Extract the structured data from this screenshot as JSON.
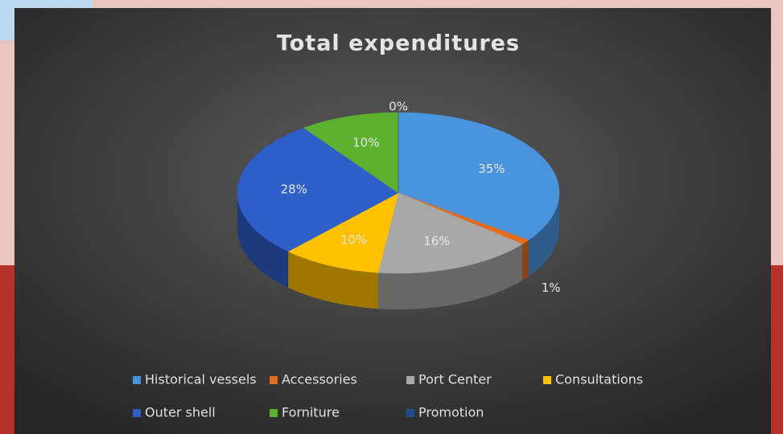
{
  "chart_data": {
    "type": "pie3d",
    "title": "Total expenditures",
    "categories": [
      "Historical vessels",
      "Accessories",
      "Port Center",
      "Consultations",
      "Outer shell",
      "Forniture",
      "Promotion"
    ],
    "values": [
      35,
      1,
      16,
      10,
      28,
      10,
      0
    ],
    "value_labels": [
      "35%",
      "1%",
      "16%",
      "10%",
      "28%",
      "10%",
      "0%"
    ],
    "colors": [
      "#4a93dd",
      "#e36c1d",
      "#a8a8a8",
      "#ffc000",
      "#2e5fc8",
      "#5cb131",
      "#1f4f8f"
    ],
    "legend": "bottom"
  }
}
